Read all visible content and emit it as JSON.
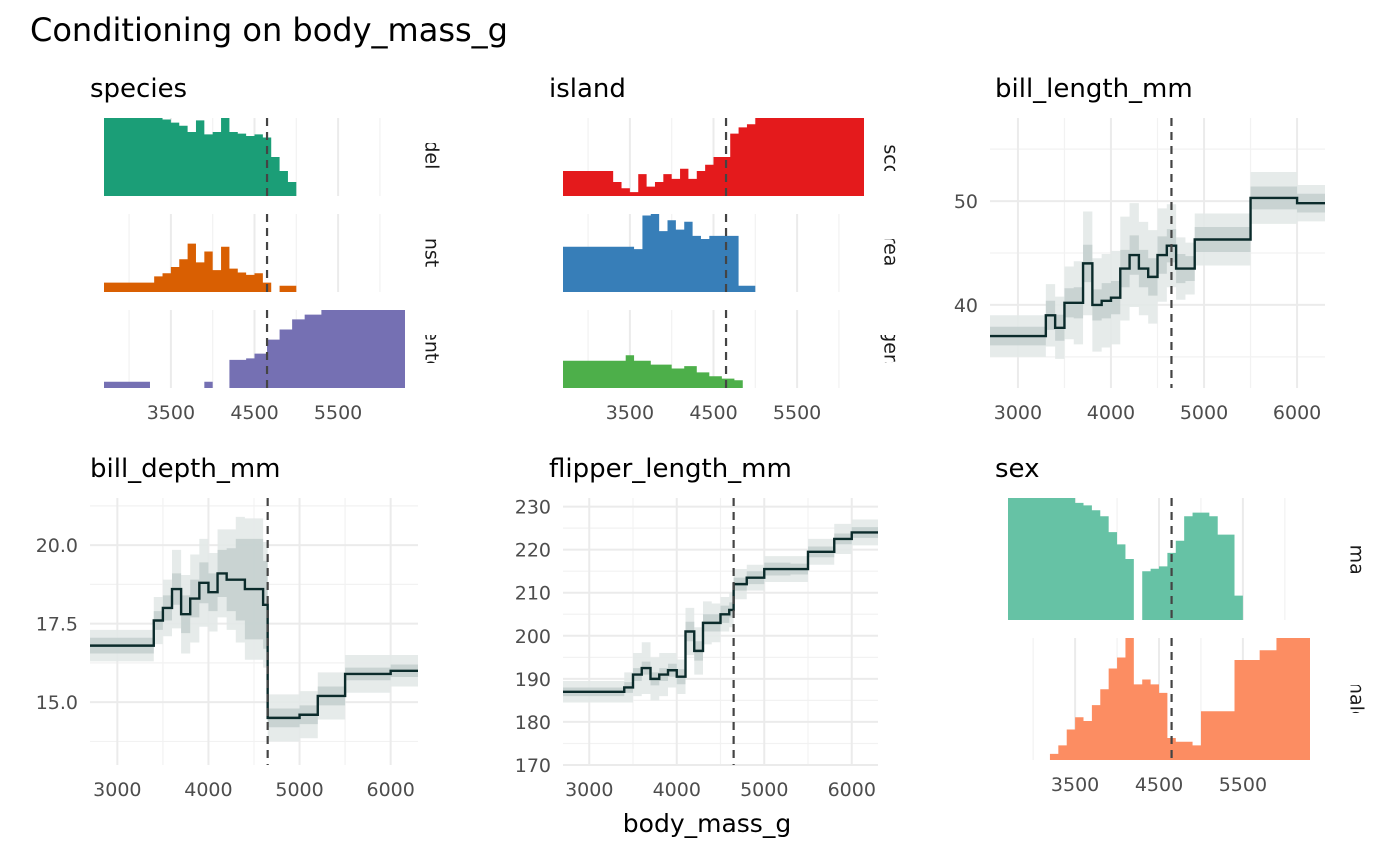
{
  "title": "Conditioning on body_mass_g",
  "xlabel": "body_mass_g",
  "colors": {
    "Adelie": "#1b9e77",
    "Chinstrap": "#d95f02",
    "Gentoo": "#7570b3",
    "Biscoe": "#e41a1c",
    "Dream": "#377eb8",
    "Torgersen": "#4daf4a",
    "female": "#66c2a5",
    "male": "#fc8d62",
    "line": "#0b2b2b",
    "band_outer": "#e3e9e8",
    "band_inner": "#c3cfce",
    "grid": "#ebebeb",
    "vline": "#444444"
  },
  "chart_data": [
    {
      "type": "area",
      "title": "species",
      "xlim": [
        2700,
        6300
      ],
      "xticks": [
        3500,
        4500,
        5500
      ],
      "vline": 4650,
      "facets": [
        {
          "label": "Adelie",
          "color_key": "Adelie",
          "x": [
            2700,
            3300,
            3400,
            3500,
            3600,
            3700,
            3800,
            3900,
            4000,
            4100,
            4200,
            4300,
            4400,
            4500,
            4600,
            4700,
            4800,
            4900,
            5000
          ],
          "y": [
            1.0,
            1.0,
            0.98,
            0.94,
            0.9,
            0.82,
            0.97,
            0.79,
            0.82,
            1.0,
            0.82,
            0.8,
            0.77,
            0.79,
            0.75,
            0.5,
            0.32,
            0.18,
            0.08
          ]
        },
        {
          "label": "Chinstrap",
          "color_key": "Chinstrap",
          "x": [
            2700,
            3200,
            3300,
            3400,
            3500,
            3600,
            3700,
            3800,
            3900,
            4000,
            4100,
            4200,
            4300,
            4400,
            4500,
            4600,
            4700,
            4800,
            4900,
            5000
          ],
          "y": [
            0.12,
            0.12,
            0.2,
            0.24,
            0.32,
            0.42,
            0.62,
            0.38,
            0.52,
            0.28,
            0.58,
            0.3,
            0.25,
            0.22,
            0.24,
            0.12,
            0.0,
            0.08,
            0.08,
            0.0
          ]
        },
        {
          "label": "Gentoo",
          "color_key": "Gentoo",
          "x": [
            2700,
            3250,
            3900,
            4000,
            4200,
            4400,
            4500,
            4650,
            4800,
            4950,
            5100,
            5300,
            5500,
            5700,
            5900,
            6300
          ],
          "y": [
            0.08,
            0.0,
            0.08,
            0.0,
            0.36,
            0.38,
            0.44,
            0.62,
            0.75,
            0.88,
            0.94,
            1.0,
            1.0,
            1.0,
            1.0,
            1.0
          ]
        }
      ]
    },
    {
      "type": "area",
      "title": "island",
      "xlim": [
        2700,
        6300
      ],
      "xticks": [
        3500,
        4500,
        5500
      ],
      "vline": 4650,
      "facets": [
        {
          "label": "Biscoe",
          "color_key": "Biscoe",
          "x": [
            2700,
            3300,
            3400,
            3500,
            3600,
            3700,
            3800,
            3900,
            4000,
            4100,
            4200,
            4300,
            4400,
            4500,
            4600,
            4700,
            4800,
            4900,
            5000,
            6300
          ],
          "y": [
            0.32,
            0.18,
            0.1,
            0.05,
            0.28,
            0.12,
            0.18,
            0.28,
            0.22,
            0.35,
            0.22,
            0.32,
            0.4,
            0.5,
            0.5,
            0.8,
            0.88,
            0.92,
            1.0,
            1.0
          ]
        },
        {
          "label": "Dream",
          "color_key": "Dream",
          "x": [
            2700,
            3500,
            3550,
            3650,
            3750,
            3850,
            3950,
            4050,
            4150,
            4250,
            4350,
            4450,
            4650,
            4800,
            5000
          ],
          "y": [
            0.58,
            0.58,
            0.55,
            0.98,
            1.0,
            0.78,
            0.92,
            0.8,
            0.9,
            0.72,
            0.68,
            0.72,
            0.72,
            0.08,
            0.0
          ]
        },
        {
          "label": "Torgersen",
          "color_key": "Torgersen",
          "x": [
            2700,
            3350,
            3450,
            3550,
            3750,
            4000,
            4150,
            4300,
            4450,
            4600,
            4750,
            4850
          ],
          "y": [
            0.35,
            0.35,
            0.42,
            0.35,
            0.3,
            0.25,
            0.28,
            0.2,
            0.15,
            0.12,
            0.1,
            0.0
          ]
        }
      ]
    },
    {
      "type": "line",
      "title": "bill_length_mm",
      "xlim": [
        2700,
        6300
      ],
      "ylim": [
        32,
        58
      ],
      "xticks": [
        3000,
        4000,
        5000,
        6000
      ],
      "yticks": [
        40,
        50
      ],
      "vline": 4650,
      "step_x": [
        2700,
        3200,
        3300,
        3400,
        3500,
        3600,
        3700,
        3800,
        3900,
        4000,
        4100,
        4200,
        4300,
        4400,
        4500,
        4600,
        4700,
        4800,
        4900,
        5000,
        5500,
        6000,
        6300
      ],
      "step_y": [
        37,
        37,
        39,
        37.8,
        40.2,
        40.2,
        44,
        40,
        40.4,
        40.7,
        43.5,
        44.8,
        43.5,
        42.7,
        44.8,
        45.7,
        43.5,
        43.5,
        46.3,
        46.3,
        50.3,
        49.8,
        49.8
      ],
      "inner": [
        1.8,
        1.8,
        2.8,
        2.5,
        2.8,
        3,
        3.6,
        3,
        3.4,
        3.2,
        3.6,
        3.8,
        3.6,
        3.6,
        3.6,
        3.2,
        2.8,
        2.4,
        2.4,
        2.4,
        2.2,
        1.8,
        1.8
      ],
      "outer": [
        4,
        4,
        6,
        6,
        7,
        8,
        10,
        9,
        9,
        9,
        10,
        10,
        9,
        9,
        9,
        8,
        6,
        5,
        5,
        5,
        5,
        3.5,
        3.5
      ]
    },
    {
      "type": "line",
      "title": "bill_depth_mm",
      "xlim": [
        2700,
        6300
      ],
      "ylim": [
        13,
        21.5
      ],
      "xticks": [
        3000,
        4000,
        5000,
        6000
      ],
      "yticks": [
        15.0,
        17.5,
        20.0
      ],
      "vline": 4650,
      "step_x": [
        2700,
        3200,
        3400,
        3500,
        3600,
        3700,
        3800,
        3900,
        4000,
        4100,
        4200,
        4300,
        4400,
        4500,
        4600,
        4650,
        4800,
        5000,
        5200,
        5500,
        6000,
        6300
      ],
      "step_y": [
        16.8,
        16.8,
        17.6,
        18.0,
        18.6,
        17.8,
        18.3,
        18.8,
        18.5,
        19.1,
        18.9,
        18.9,
        18.6,
        18.6,
        18.1,
        14.5,
        14.5,
        14.6,
        15.2,
        15.9,
        16.0,
        16.0
      ],
      "inner": [
        0.5,
        0.5,
        0.6,
        0.8,
        1,
        1.2,
        1.2,
        1.3,
        1.2,
        1.5,
        2,
        2.6,
        3.2,
        3.2,
        2.8,
        0.6,
        0.6,
        0.6,
        0.6,
        0.4,
        0.4,
        0.4
      ],
      "outer": [
        1,
        1,
        1.5,
        1.8,
        2.5,
        2.5,
        2.8,
        2.8,
        2.5,
        2.8,
        3.2,
        4,
        4.5,
        4.5,
        4,
        1.5,
        1.5,
        1.5,
        1.5,
        1.2,
        1,
        1
      ]
    },
    {
      "type": "line",
      "title": "flipper_length_mm",
      "xlim": [
        2700,
        6300
      ],
      "ylim": [
        170,
        232
      ],
      "xticks": [
        3000,
        4000,
        5000,
        6000
      ],
      "yticks": [
        170,
        180,
        190,
        200,
        210,
        220,
        230
      ],
      "vline": 4650,
      "step_x": [
        2700,
        3300,
        3400,
        3500,
        3600,
        3700,
        3800,
        3900,
        4000,
        4100,
        4200,
        4300,
        4400,
        4500,
        4600,
        4650,
        4800,
        5000,
        5300,
        5500,
        5800,
        6000,
        6300
      ],
      "step_y": [
        187,
        187,
        188,
        191,
        192.5,
        190,
        191,
        192,
        190.5,
        201,
        196.5,
        203,
        203,
        205,
        206,
        212,
        213.5,
        215.5,
        215.5,
        219.5,
        222.5,
        224,
        224
      ],
      "inner": [
        2,
        2,
        2.5,
        3,
        3,
        3,
        3,
        3,
        3.5,
        4.5,
        4.5,
        4,
        4,
        4,
        3.5,
        3,
        3,
        3,
        2.5,
        2.5,
        2.5,
        2.5,
        2.5
      ],
      "outer": [
        5,
        5,
        7,
        10,
        12,
        10,
        10,
        8,
        8,
        11,
        11,
        10,
        9,
        8,
        8,
        7,
        6,
        6,
        6,
        6,
        7,
        6,
        6
      ]
    },
    {
      "type": "area",
      "title": "sex",
      "xlim": [
        2700,
        6300
      ],
      "xticks": [
        3500,
        4500,
        5500
      ],
      "vline": 4650,
      "facets": [
        {
          "label": "female",
          "color_key": "female",
          "x": [
            2700,
            3200,
            3400,
            3500,
            3600,
            3700,
            3800,
            3900,
            4000,
            4100,
            4200,
            4300,
            4400,
            4500,
            4600,
            4700,
            4800,
            4900,
            5000,
            5100,
            5200,
            5300,
            5400,
            5500
          ],
          "y": [
            1.0,
            1.0,
            1.0,
            0.96,
            0.94,
            0.9,
            0.85,
            0.72,
            0.62,
            0.5,
            0.0,
            0.4,
            0.42,
            0.44,
            0.55,
            0.65,
            0.85,
            0.88,
            0.88,
            0.85,
            0.7,
            0.7,
            0.2,
            0.0
          ]
        },
        {
          "label": "male",
          "color_key": "male",
          "x": [
            3200,
            3300,
            3400,
            3500,
            3600,
            3700,
            3800,
            3900,
            4000,
            4100,
            4200,
            4300,
            4400,
            4500,
            4600,
            4700,
            4800,
            4900,
            5000,
            5200,
            5400,
            5700,
            5900,
            6300
          ],
          "y": [
            0.05,
            0.12,
            0.25,
            0.35,
            0.32,
            0.45,
            0.58,
            0.75,
            0.84,
            1.0,
            0.62,
            0.66,
            0.62,
            0.55,
            0.18,
            0.15,
            0.15,
            0.12,
            0.4,
            0.4,
            0.82,
            0.9,
            1.0,
            1.0
          ]
        }
      ]
    }
  ]
}
